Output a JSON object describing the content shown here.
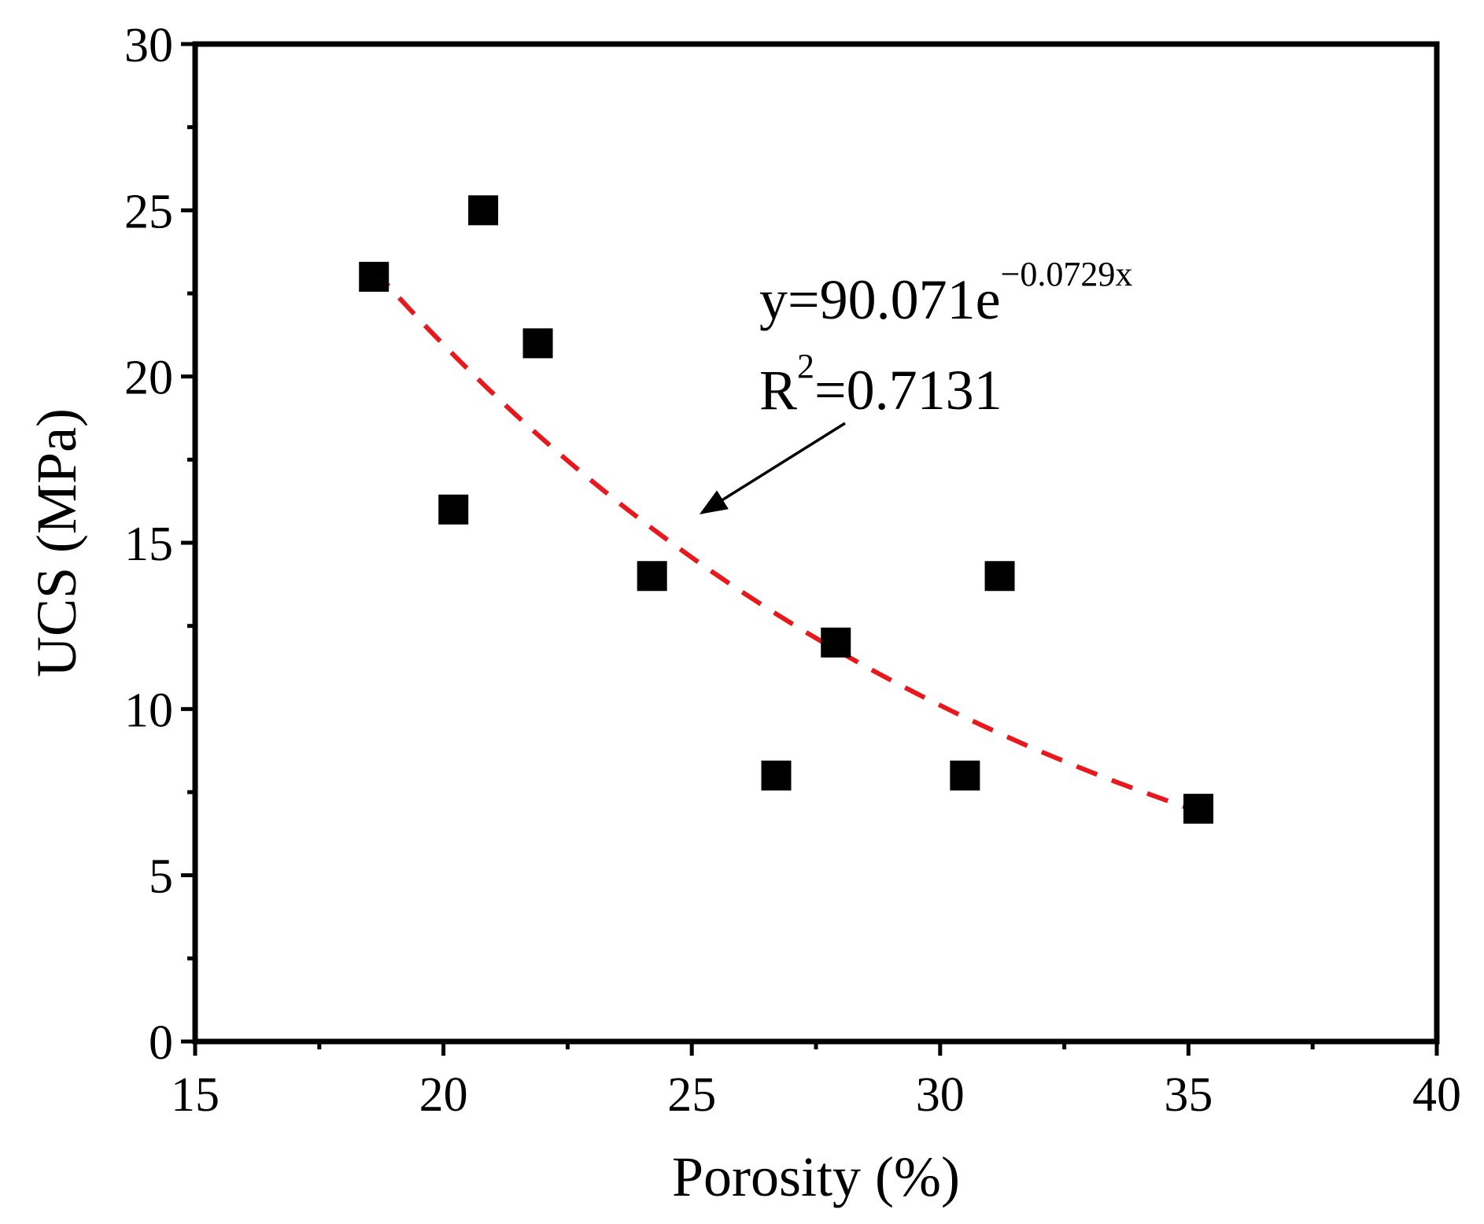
{
  "chart_data": {
    "type": "scatter",
    "title": "",
    "xlabel": "Porosity (%)",
    "ylabel": "UCS (MPa)",
    "xlim": [
      15,
      40
    ],
    "ylim": [
      0,
      30
    ],
    "xticks": [
      "15",
      "20",
      "25",
      "30",
      "35",
      "40"
    ],
    "yticks": [
      "0",
      "5",
      "10",
      "15",
      "20",
      "25",
      "30"
    ],
    "x_minor_step": 2.5,
    "y_minor_step": 2.5,
    "grid": false,
    "series": [
      {
        "name": "UCS",
        "marker": "square",
        "color": "#000000",
        "points": [
          {
            "x": 18.6,
            "y": 23
          },
          {
            "x": 20.2,
            "y": 16
          },
          {
            "x": 20.8,
            "y": 25
          },
          {
            "x": 21.9,
            "y": 21
          },
          {
            "x": 24.2,
            "y": 14
          },
          {
            "x": 26.7,
            "y": 8
          },
          {
            "x": 27.9,
            "y": 12
          },
          {
            "x": 30.5,
            "y": 8
          },
          {
            "x": 31.2,
            "y": 14
          },
          {
            "x": 35.2,
            "y": 7
          }
        ]
      }
    ],
    "fit": {
      "name": "exponential fit",
      "a": 90.071,
      "b": -0.0729,
      "x_range": [
        18.6,
        35.2
      ],
      "color": "#e8181d",
      "style": "dashed"
    },
    "annotation": {
      "equation_base": "y=90.071e",
      "equation_exponent": "−0.0729x",
      "r2_prefix": "R",
      "r2_exponent": "2",
      "r2_value": "=0.7131",
      "arrow_color": "#000000",
      "arrow_target": {
        "x": 25.2,
        "y": 15.9
      }
    }
  }
}
